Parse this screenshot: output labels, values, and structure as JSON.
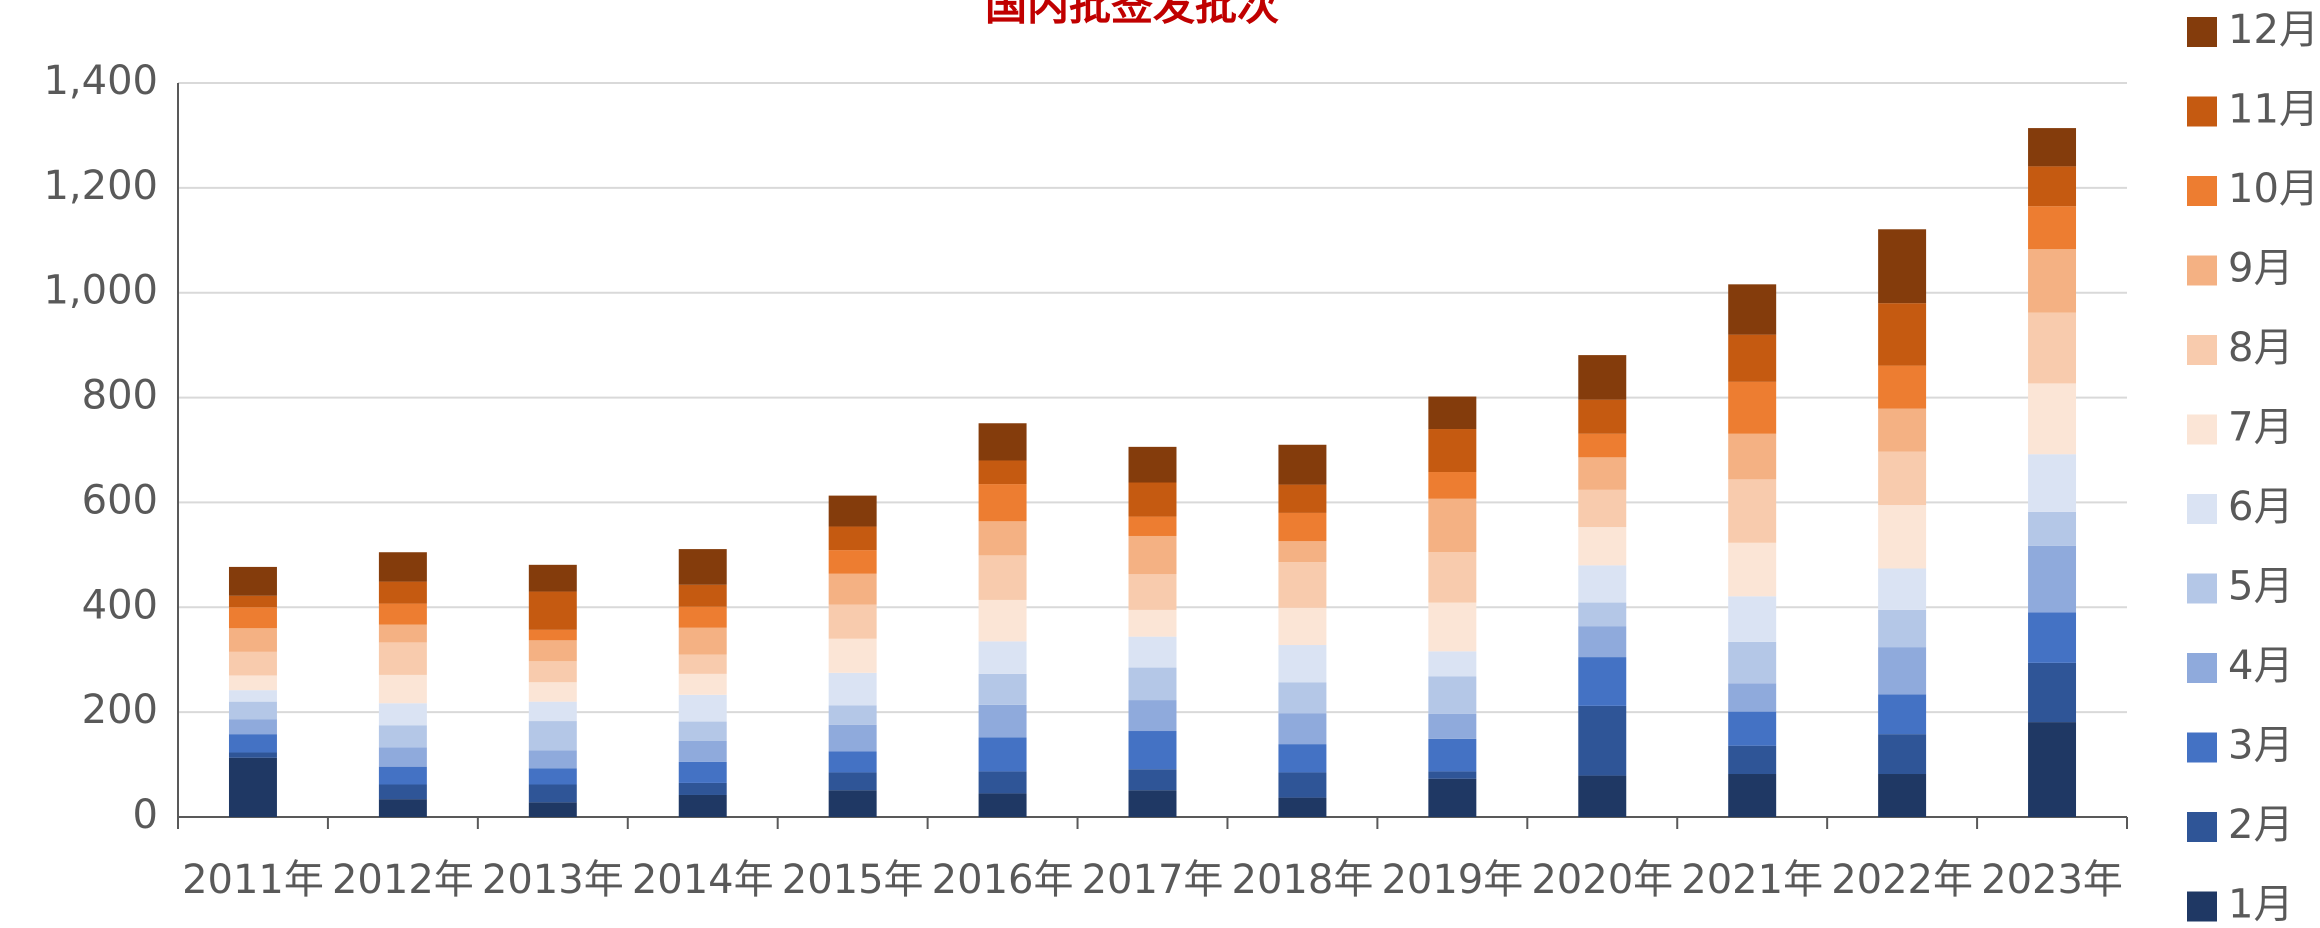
{
  "chart_data": {
    "type": "stacked_bar",
    "title": "国内批签发批次",
    "categories": [
      "2011年",
      "2012年",
      "2013年",
      "2014年",
      "2015年",
      "2016年",
      "2017年",
      "2018年",
      "2019年",
      "2020年",
      "2021年",
      "2022年",
      "2023年"
    ],
    "series": [
      {
        "name": "1月",
        "color": "#1f3864",
        "values": [
          113,
          34,
          28,
          42,
          51,
          45,
          51,
          37,
          73,
          79,
          82,
          82,
          181
        ]
      },
      {
        "name": "2月",
        "color": "#2f5597",
        "values": [
          10,
          28,
          34,
          23,
          34,
          42,
          40,
          48,
          14,
          133,
          54,
          76,
          113
        ]
      },
      {
        "name": "3月",
        "color": "#4472c4",
        "values": [
          35,
          34,
          31,
          40,
          40,
          65,
          73,
          54,
          62,
          93,
          65,
          76,
          96
        ]
      },
      {
        "name": "4月",
        "color": "#8faadc",
        "values": [
          28,
          37,
          34,
          40,
          51,
          62,
          59,
          59,
          48,
          59,
          54,
          90,
          127
        ]
      },
      {
        "name": "5月",
        "color": "#b4c7e7",
        "values": [
          34,
          42,
          56,
          37,
          37,
          59,
          62,
          59,
          71,
          45,
          79,
          71,
          65
        ]
      },
      {
        "name": "6月",
        "color": "#dae3f3",
        "values": [
          22,
          42,
          37,
          51,
          62,
          62,
          59,
          71,
          48,
          71,
          87,
          79,
          110
        ]
      },
      {
        "name": "7月",
        "color": "#fbe5d6",
        "values": [
          28,
          54,
          37,
          40,
          65,
          79,
          51,
          71,
          93,
          73,
          102,
          121,
          135
        ]
      },
      {
        "name": "8月",
        "color": "#f8cbad",
        "values": [
          45,
          62,
          40,
          37,
          65,
          85,
          68,
          87,
          96,
          71,
          121,
          102,
          135
        ]
      },
      {
        "name": "9月",
        "color": "#f4b183",
        "values": [
          45,
          34,
          40,
          51,
          59,
          65,
          73,
          40,
          102,
          62,
          87,
          82,
          121
        ]
      },
      {
        "name": "10月",
        "color": "#ed7d31",
        "values": [
          40,
          40,
          20,
          40,
          45,
          71,
          37,
          54,
          51,
          45,
          99,
          82,
          82
        ]
      },
      {
        "name": "11月",
        "color": "#c55a11",
        "values": [
          22,
          42,
          73,
          42,
          45,
          45,
          65,
          54,
          82,
          65,
          90,
          119,
          76
        ]
      },
      {
        "name": "12月",
        "color": "#843c0c",
        "values": [
          55,
          56,
          51,
          68,
          59,
          71,
          68,
          76,
          62,
          85,
          96,
          141,
          73
        ]
      }
    ],
    "ylim": [
      0,
      1400
    ],
    "yticks": [
      0,
      200,
      400,
      600,
      800,
      {
        "value": 1000,
        "label": "1,000"
      },
      {
        "value": 1200,
        "label": "1,200"
      },
      {
        "value": 1400,
        "label": "1,400"
      }
    ],
    "grid": true,
    "legend": "right"
  }
}
